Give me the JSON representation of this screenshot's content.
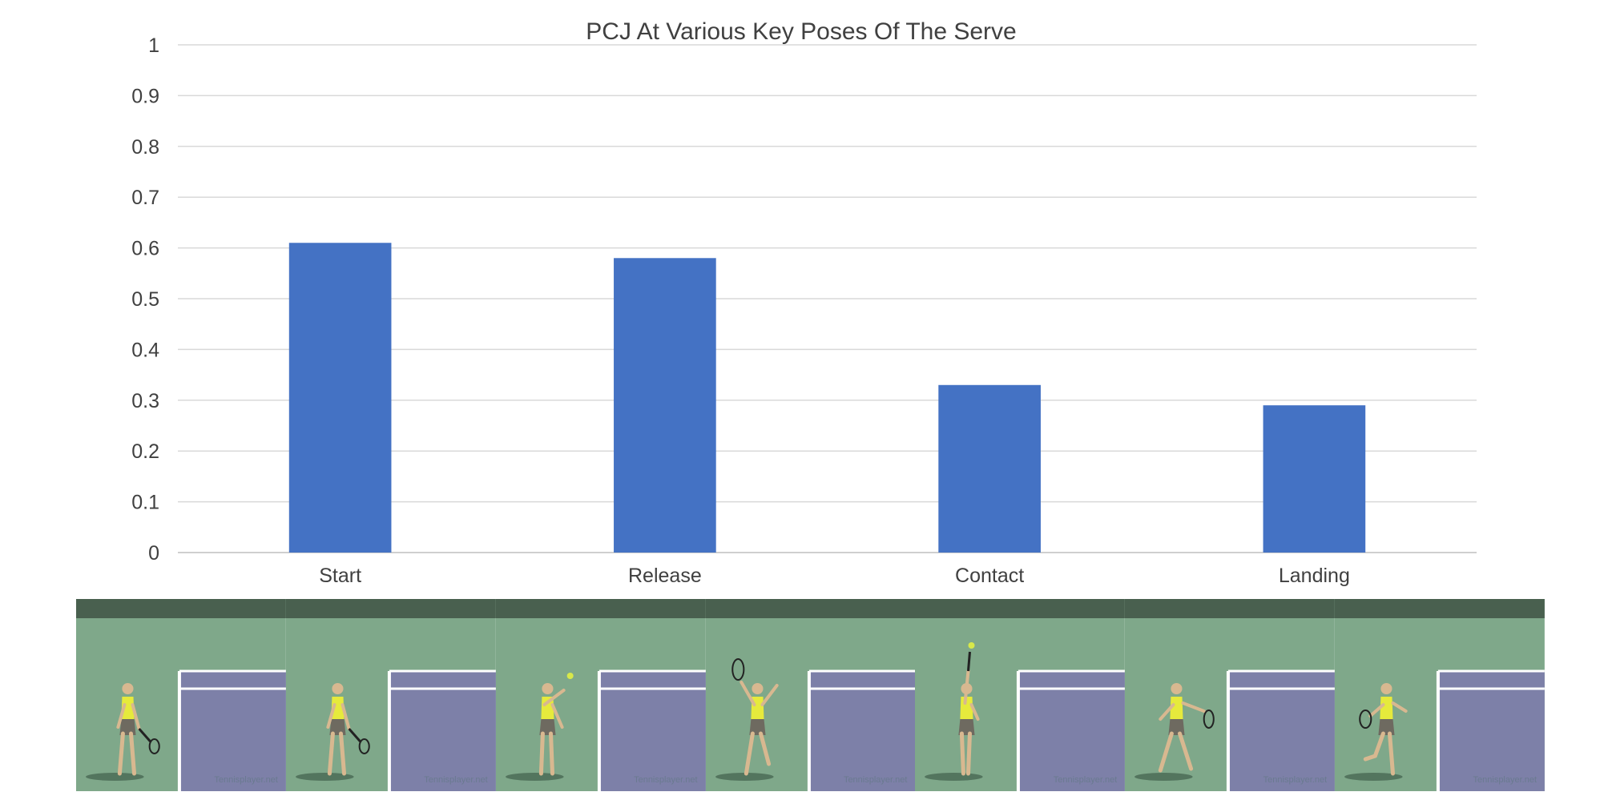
{
  "chart_data": {
    "type": "bar",
    "title": "PCJ At Various Key Poses Of The Serve",
    "categories": [
      "Start",
      "Release",
      "Contact",
      "Landing"
    ],
    "values": [
      0.61,
      0.58,
      0.33,
      0.29
    ],
    "yticks": [
      "0",
      "0.1",
      "0.2",
      "0.3",
      "0.4",
      "0.5",
      "0.6",
      "0.7",
      "0.8",
      "0.9",
      "1"
    ],
    "ylim": [
      0,
      1
    ],
    "xlabel": "",
    "ylabel": "",
    "grid": true,
    "legend": "none",
    "bar_color": "#4472c4"
  },
  "image_strip": {
    "frames": [
      {
        "pose": "start",
        "watermark": "Tennisplayer.net"
      },
      {
        "pose": "start",
        "watermark": "Tennisplayer.net"
      },
      {
        "pose": "release",
        "watermark": "Tennisplayer.net"
      },
      {
        "pose": "trophy",
        "watermark": "Tennisplayer.net"
      },
      {
        "pose": "contact",
        "watermark": "Tennisplayer.net"
      },
      {
        "pose": "follow-through",
        "watermark": "Tennisplayer.net"
      },
      {
        "pose": "landing",
        "watermark": "Tennisplayer.net"
      }
    ],
    "court_color": "#7fa88a",
    "service_box_color": "#7d80a8",
    "backdrop_color": "#49604f"
  }
}
